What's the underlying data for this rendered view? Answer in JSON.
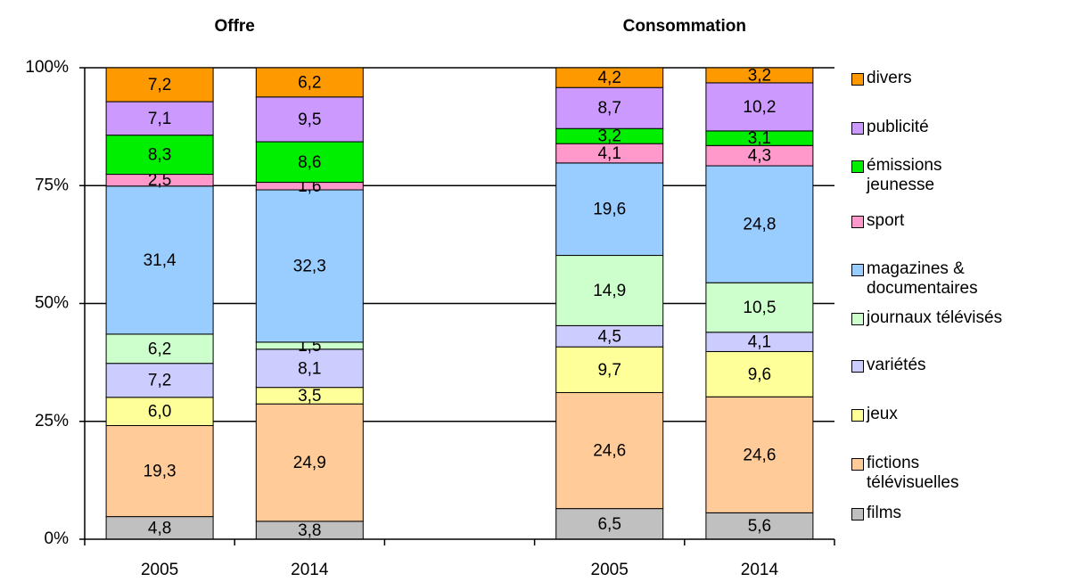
{
  "chart_data": {
    "type": "stacked_bar",
    "group_labels": [
      "Offre",
      "Consommation"
    ],
    "categories": [
      "2005",
      "2014",
      null,
      "2005",
      "2014"
    ],
    "ylim": [
      0,
      100
    ],
    "yticks": [
      {
        "value": 0,
        "label": "0%"
      },
      {
        "value": 25,
        "label": "25%"
      },
      {
        "value": 50,
        "label": "50%"
      },
      {
        "value": 75,
        "label": "75%"
      },
      {
        "value": 100,
        "label": "100%"
      }
    ],
    "grid": true,
    "legend": "right",
    "series": [
      {
        "name": "films",
        "color": "#c0c0c0",
        "values": [
          4.8,
          3.8,
          null,
          6.5,
          5.6
        ],
        "value_labels": [
          "4,8",
          "3,8",
          null,
          "6,5",
          "5,6"
        ]
      },
      {
        "name": "fictions télévisuelles",
        "color": "#ffcc99",
        "values": [
          19.3,
          24.9,
          null,
          24.6,
          24.6
        ],
        "value_labels": [
          "19,3",
          "24,9",
          null,
          "24,6",
          "24,6"
        ]
      },
      {
        "name": "jeux",
        "color": "#ffff99",
        "values": [
          6.0,
          3.5,
          null,
          9.7,
          9.6
        ],
        "value_labels": [
          "6,0",
          "3,5",
          null,
          "9,7",
          "9,6"
        ]
      },
      {
        "name": "variétés",
        "color": "#ccccff",
        "values": [
          7.2,
          8.1,
          null,
          4.5,
          4.1
        ],
        "value_labels": [
          "7,2",
          "8,1",
          null,
          "4,5",
          "4,1"
        ]
      },
      {
        "name": "journaux télévisés",
        "color": "#ccffcc",
        "values": [
          6.2,
          1.5,
          null,
          14.9,
          10.5
        ],
        "value_labels": [
          "6,2",
          "1,5",
          null,
          "14,9",
          "10,5"
        ]
      },
      {
        "name": "magazines & documentaires",
        "color": "#99ccff",
        "values": [
          31.4,
          32.3,
          null,
          19.6,
          24.8
        ],
        "value_labels": [
          "31,4",
          "32,3",
          null,
          "19,6",
          "24,8"
        ]
      },
      {
        "name": "sport",
        "color": "#ff99cc",
        "values": [
          2.5,
          1.6,
          null,
          4.1,
          4.3
        ],
        "value_labels": [
          "2,5",
          "1,6",
          null,
          "4,1",
          "4,3"
        ]
      },
      {
        "name": "émissions jeunesse",
        "color": "#00ee00",
        "values": [
          8.3,
          8.6,
          null,
          3.2,
          3.1
        ],
        "value_labels": [
          "8,3",
          "8,6",
          null,
          "3,2",
          "3,1"
        ]
      },
      {
        "name": "publicité",
        "color": "#cc99ff",
        "values": [
          7.1,
          9.5,
          null,
          8.7,
          10.2
        ],
        "value_labels": [
          "7,1",
          "9,5",
          null,
          "8,7",
          "10,2"
        ]
      },
      {
        "name": "divers",
        "color": "#ff9900",
        "values": [
          7.2,
          6.2,
          null,
          4.2,
          3.2
        ],
        "value_labels": [
          "7,2",
          "6,2",
          null,
          "4,2",
          "3,2"
        ]
      }
    ]
  }
}
